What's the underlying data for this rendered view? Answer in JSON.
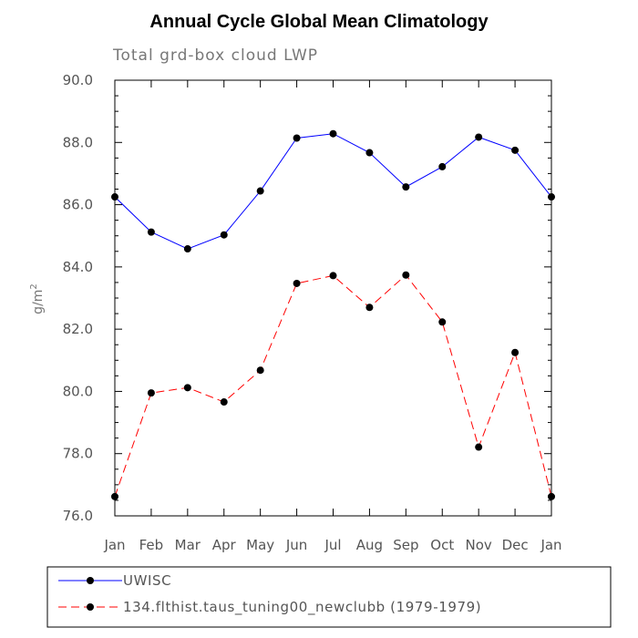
{
  "chart_data": {
    "type": "line",
    "title": "Annual Cycle Global Mean Climatology",
    "subtitle": "Total grd-box cloud LWP",
    "ylabel": "g/m",
    "ylabel_sup": "2",
    "xlabel": "",
    "ylim": [
      76.0,
      90.0
    ],
    "yticks": [
      "76.0",
      "78.0",
      "80.0",
      "82.0",
      "84.0",
      "86.0",
      "88.0",
      "90.0"
    ],
    "categories": [
      "Jan",
      "Feb",
      "Mar",
      "Apr",
      "May",
      "Jun",
      "Jul",
      "Aug",
      "Sep",
      "Oct",
      "Nov",
      "Dec",
      "Jan"
    ],
    "series": [
      {
        "name": "UWISC",
        "color": "#0000ff",
        "dash": "solid",
        "values": [
          86.25,
          85.12,
          84.58,
          85.03,
          86.44,
          88.14,
          88.28,
          87.67,
          86.57,
          87.22,
          88.17,
          87.75,
          86.25
        ]
      },
      {
        "name": "134.flthist.taus_tuning00_newclubb (1979-1979)",
        "color": "#ff0000",
        "dash": "dashed",
        "values": [
          76.62,
          79.95,
          80.12,
          79.66,
          80.68,
          83.47,
          83.72,
          82.7,
          83.74,
          82.23,
          78.21,
          81.25,
          76.62
        ]
      }
    ],
    "legend": {
      "position": "bottom",
      "entries": [
        "UWISC",
        "134.flthist.taus_tuning00_newclubb (1979-1979)"
      ]
    }
  }
}
